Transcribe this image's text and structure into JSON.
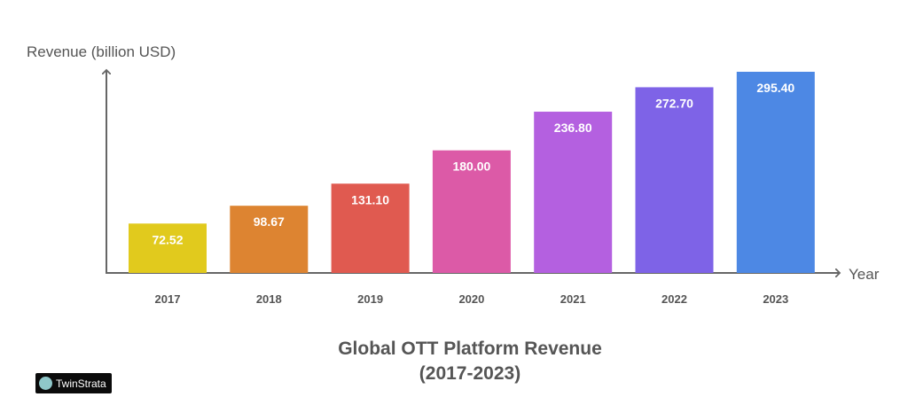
{
  "chart_data": {
    "type": "bar",
    "title": "Global OTT Platform Revenue",
    "subtitle": "(2017-2023)",
    "xlabel": "Year",
    "ylabel": "Revenue (billion USD)",
    "categories": [
      "2017",
      "2018",
      "2019",
      "2020",
      "2021",
      "2022",
      "2023"
    ],
    "values": [
      72.52,
      98.67,
      131.1,
      180.0,
      236.8,
      272.7,
      295.4
    ],
    "data_labels": [
      "72.52",
      "98.67",
      "131.10",
      "180.00",
      "236.80",
      "272.70",
      "295.40"
    ],
    "colors": [
      "#e1ca1d",
      "#dd8431",
      "#e05a50",
      "#dc5aa7",
      "#b460e0",
      "#7e63e7",
      "#4d88e4"
    ],
    "ylim": [
      0,
      300
    ],
    "grid": false,
    "legend": "none"
  },
  "watermark": "TwinStrata"
}
